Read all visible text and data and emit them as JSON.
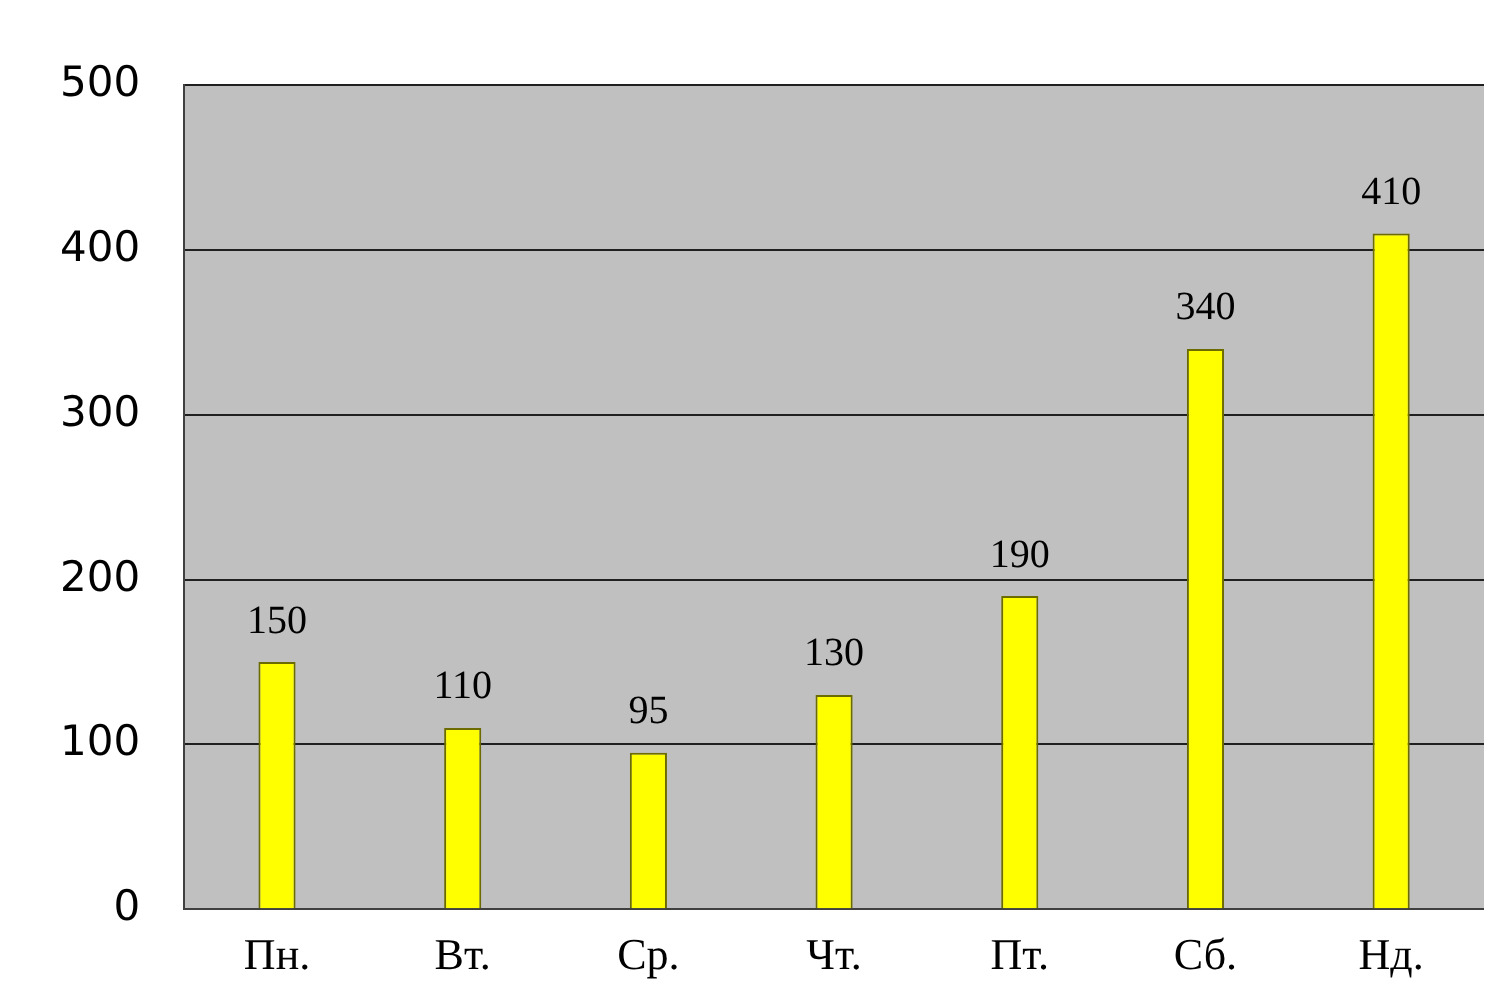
{
  "chart_data": {
    "type": "bar",
    "categories": [
      "Пн.",
      "Вт.",
      "Ср.",
      "Чт.",
      "Пт.",
      "Сб.",
      "Нд."
    ],
    "values": [
      150,
      110,
      95,
      130,
      190,
      340,
      410
    ],
    "color": "#ffff00",
    "ylim": [
      0,
      500
    ],
    "yticks": [
      0,
      100,
      200,
      300,
      400,
      500
    ],
    "grid": "y",
    "data_labels": true
  }
}
